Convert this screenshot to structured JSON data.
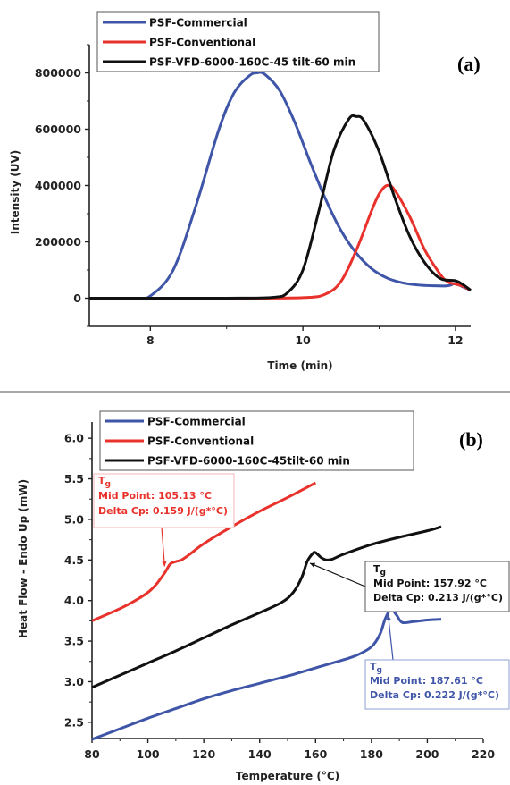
{
  "chart_data": [
    {
      "type": "line",
      "panel_label": "(a)",
      "xlabel": "Time (min)",
      "ylabel": "Intensity (UV)",
      "xlim": [
        7.2,
        12.2
      ],
      "ylim": [
        -100000,
        900000
      ],
      "xticks": [
        8,
        10,
        12
      ],
      "xtick_labels": [
        "8",
        "10",
        "12"
      ],
      "yticks": [
        0,
        200000,
        400000,
        600000,
        800000
      ],
      "ytick_labels": [
        "0",
        "200000",
        "400000",
        "600000",
        "800000"
      ],
      "grid": false,
      "legend_position": "top-left",
      "series": [
        {
          "name": "PSF-Commercial",
          "color": "#3f55a8",
          "x": [
            7.2,
            7.8,
            8.0,
            8.3,
            8.6,
            8.9,
            9.1,
            9.3,
            9.4,
            9.5,
            9.7,
            9.9,
            10.1,
            10.3,
            10.5,
            10.7,
            10.9,
            11.1,
            11.3,
            11.5,
            11.7,
            11.9,
            12.0,
            12.1,
            12.2
          ],
          "y": [
            0,
            0,
            8000,
            100000,
            330000,
            600000,
            730000,
            790000,
            800000,
            795000,
            735000,
            620000,
            480000,
            350000,
            240000,
            160000,
            105000,
            72000,
            55000,
            47000,
            44000,
            44000,
            52000,
            40000,
            28000
          ]
        },
        {
          "name": "PSF-Conventional",
          "color": "#e8322b",
          "x": [
            7.2,
            8.0,
            9.0,
            10.0,
            10.3,
            10.5,
            10.7,
            10.9,
            11.0,
            11.1,
            11.2,
            11.4,
            11.6,
            11.8,
            11.9,
            12.0,
            12.1,
            12.2
          ],
          "y": [
            0,
            0,
            0,
            2000,
            15000,
            60000,
            170000,
            310000,
            370000,
            400000,
            385000,
            290000,
            170000,
            85000,
            58000,
            50000,
            42000,
            28000
          ]
        },
        {
          "name": "PSF-VFD-6000-160C-45 tilt-60 min",
          "color": "#111111",
          "x": [
            7.2,
            8.0,
            9.0,
            9.6,
            9.8,
            10.0,
            10.2,
            10.4,
            10.6,
            10.7,
            10.8,
            11.0,
            11.2,
            11.4,
            11.6,
            11.8,
            12.0,
            12.1,
            12.2
          ],
          "y": [
            0,
            0,
            0,
            3000,
            20000,
            100000,
            300000,
            520000,
            635000,
            645000,
            630000,
            520000,
            360000,
            220000,
            125000,
            70000,
            62000,
            48000,
            28000
          ]
        }
      ]
    },
    {
      "type": "line",
      "panel_label": "(b)",
      "xlabel": "Temperature (°C)",
      "ylabel": "Heat Flow - Endo Up (mW)",
      "xlim": [
        80,
        220
      ],
      "ylim": [
        2.3,
        6.2
      ],
      "xticks": [
        80,
        100,
        120,
        140,
        160,
        180,
        200,
        220
      ],
      "xtick_labels": [
        "80",
        "100",
        "120",
        "140",
        "160",
        "180",
        "200",
        "220"
      ],
      "yticks": [
        2.5,
        3.0,
        3.5,
        4.0,
        4.5,
        5.0,
        5.5,
        6.0
      ],
      "ytick_labels": [
        "2.5",
        "3.0",
        "3.5",
        "4.0",
        "4.5",
        "5.0",
        "5.5",
        "6.0"
      ],
      "grid": false,
      "legend_position": "top-right",
      "series": [
        {
          "name": "PSF-Commercial",
          "color": "#3f55a8",
          "x": [
            80,
            90,
            100,
            110,
            120,
            130,
            140,
            150,
            160,
            170,
            175,
            180,
            183,
            185,
            187,
            189,
            191,
            195,
            200,
            205
          ],
          "y": [
            2.29,
            2.42,
            2.55,
            2.67,
            2.79,
            2.89,
            2.98,
            3.07,
            3.17,
            3.27,
            3.33,
            3.43,
            3.58,
            3.78,
            3.89,
            3.82,
            3.73,
            3.74,
            3.76,
            3.77
          ]
        },
        {
          "name": "PSF-Conventional",
          "color": "#e8322b",
          "x": [
            80,
            90,
            95,
            100,
            103,
            106,
            108,
            110,
            112,
            115,
            120,
            130,
            140,
            150,
            160
          ],
          "y": [
            3.75,
            3.9,
            3.99,
            4.1,
            4.2,
            4.34,
            4.45,
            4.48,
            4.5,
            4.57,
            4.7,
            4.91,
            5.1,
            5.27,
            5.45
          ]
        },
        {
          "name": "PSF-VFD-6000-160C-45tilt-60 min",
          "color": "#111111",
          "x": [
            80,
            90,
            100,
            110,
            120,
            130,
            140,
            148,
            152,
            155,
            157,
            159,
            160,
            162,
            164,
            166,
            170,
            180,
            190,
            200,
            205
          ],
          "y": [
            2.93,
            3.08,
            3.23,
            3.38,
            3.54,
            3.7,
            3.85,
            3.98,
            4.1,
            4.28,
            4.48,
            4.58,
            4.59,
            4.53,
            4.5,
            4.51,
            4.57,
            4.69,
            4.78,
            4.86,
            4.91
          ]
        }
      ],
      "annotations": [
        {
          "lines": [
            "Mid Point: 105.13 °C",
            "Delta Cp:  0.159 J/(g*°C)"
          ],
          "tg": "T",
          "tg_sub": "g",
          "color": "#e8322b",
          "target_x": 106,
          "target_y": 4.42
        },
        {
          "lines": [
            "Mid Point: 157.92 °C",
            "Delta Cp:  0.213 J/(g*°C)"
          ],
          "tg": "T",
          "tg_sub": "g",
          "color": "#111111",
          "target_x": 158,
          "target_y": 4.46
        },
        {
          "lines": [
            "Mid Point: 187.61 °C",
            "Delta Cp:  0.222 J/(g*°C)"
          ],
          "tg": "T",
          "tg_sub": "g",
          "color": "#3f55a8",
          "target_x": 186,
          "target_y": 3.82
        }
      ]
    }
  ]
}
